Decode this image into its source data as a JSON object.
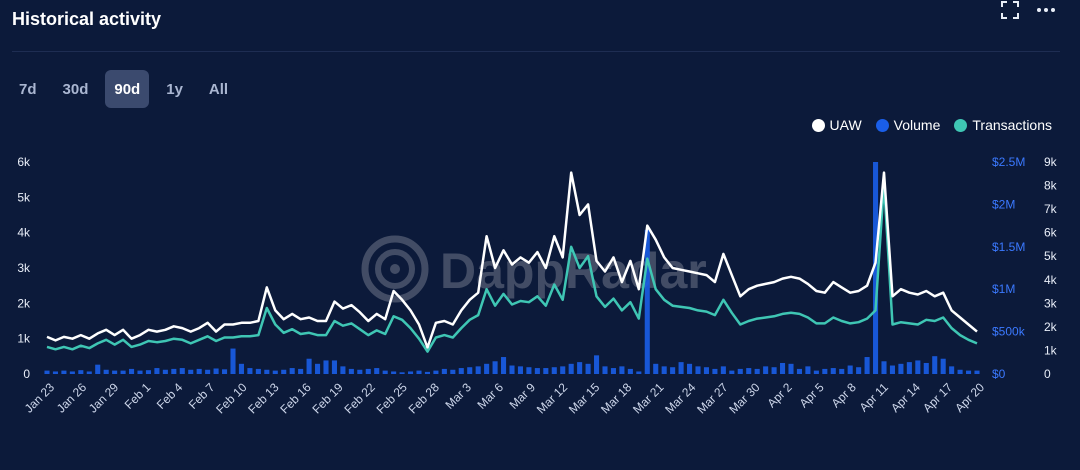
{
  "header": {
    "title": "Historical activity"
  },
  "tabs": [
    {
      "label": "7d",
      "active": false
    },
    {
      "label": "30d",
      "active": false
    },
    {
      "label": "90d",
      "active": true
    },
    {
      "label": "1y",
      "active": false
    },
    {
      "label": "All",
      "active": false
    }
  ],
  "icons": {
    "expand": "expand-icon",
    "more": "more-icon"
  },
  "watermark": "DappRadar",
  "legend": [
    {
      "label": "UAW",
      "color": "#ffffff"
    },
    {
      "label": "Volume",
      "color": "#1a5ee8"
    },
    {
      "label": "Transactions",
      "color": "#3fc6b4"
    }
  ],
  "chart_data": {
    "type": "line",
    "x_labels": [
      "Jan 23",
      "Jan 26",
      "Jan 29",
      "Feb 1",
      "Feb 4",
      "Feb 7",
      "Feb 10",
      "Feb 13",
      "Feb 16",
      "Feb 19",
      "Feb 22",
      "Feb 25",
      "Feb 28",
      "Mar 3",
      "Mar 6",
      "Mar 9",
      "Mar 12",
      "Mar 15",
      "Mar 18",
      "Mar 21",
      "Mar 24",
      "Mar 27",
      "Mar 30",
      "Apr 2",
      "Apr 5",
      "Apr 8",
      "Apr 11",
      "Apr 14",
      "Apr 17",
      "Apr 20"
    ],
    "left_axis": {
      "ticks": [
        "0",
        "1k",
        "2k",
        "3k",
        "4k",
        "5k",
        "6k"
      ],
      "ylim": [
        0,
        6000
      ]
    },
    "volume_axis": {
      "ticks": [
        "$0",
        "$500k",
        "$1M",
        "$1.5M",
        "$2M",
        "$2.5M"
      ],
      "ylim": [
        0,
        2500000
      ]
    },
    "transactions_axis": {
      "ticks": [
        "0",
        "1k",
        "2k",
        "3k",
        "4k",
        "5k",
        "6k",
        "7k",
        "8k",
        "9k"
      ],
      "ylim": [
        0,
        9000
      ]
    },
    "series": [
      {
        "name": "UAW",
        "color": "#ffffff",
        "axis": "left",
        "values": [
          1050,
          950,
          1050,
          1000,
          1100,
          1000,
          1150,
          1250,
          1100,
          1250,
          1000,
          1100,
          1250,
          1200,
          1250,
          1350,
          1300,
          1200,
          1300,
          1450,
          1200,
          1400,
          1400,
          1450,
          1450,
          1500,
          2450,
          1800,
          1550,
          1700,
          1550,
          1600,
          1500,
          1500,
          2050,
          1850,
          1950,
          1750,
          1500,
          1700,
          1550,
          2350,
          2100,
          1800,
          1400,
          750,
          1450,
          1500,
          1400,
          1800,
          2100,
          2300,
          3900,
          3000,
          3500,
          3100,
          3300,
          3150,
          3450,
          3000,
          3900,
          3300,
          5700,
          4500,
          4800,
          3200,
          2900,
          3300,
          2600,
          3200,
          2400,
          4200,
          3800,
          3300,
          3000,
          2950,
          2900,
          2850,
          2800,
          2600,
          3400,
          2800,
          2200,
          2400,
          2500,
          2550,
          2600,
          2700,
          2750,
          2700,
          2550,
          2350,
          2300,
          2600,
          2450,
          2300,
          2350,
          2500,
          3150,
          5700,
          2200,
          2400,
          2300,
          2250,
          2350,
          2200,
          2300,
          1800,
          1600,
          1400,
          1200
        ]
      },
      {
        "name": "Volume",
        "color": "#1a5ee8",
        "axis": "volume",
        "values": [
          40000,
          30000,
          40000,
          30000,
          45000,
          30000,
          110000,
          50000,
          40000,
          40000,
          60000,
          40000,
          45000,
          70000,
          50000,
          60000,
          70000,
          50000,
          60000,
          50000,
          65000,
          55000,
          300000,
          120000,
          70000,
          60000,
          50000,
          40000,
          50000,
          70000,
          60000,
          180000,
          120000,
          160000,
          160000,
          90000,
          60000,
          50000,
          60000,
          70000,
          40000,
          30000,
          20000,
          30000,
          40000,
          25000,
          40000,
          60000,
          50000,
          70000,
          80000,
          90000,
          120000,
          150000,
          200000,
          100000,
          90000,
          80000,
          70000,
          70000,
          80000,
          90000,
          120000,
          140000,
          120000,
          220000,
          90000,
          70000,
          90000,
          60000,
          30000,
          1700000,
          120000,
          90000,
          80000,
          140000,
          120000,
          90000,
          80000,
          60000,
          90000,
          40000,
          60000,
          70000,
          60000,
          90000,
          80000,
          130000,
          120000,
          60000,
          90000,
          40000,
          60000,
          70000,
          60000,
          100000,
          80000,
          200000,
          2500000,
          150000,
          100000,
          120000,
          140000,
          160000,
          130000,
          210000,
          180000,
          90000,
          50000,
          40000,
          40000
        ]
      },
      {
        "name": "Transactions",
        "color": "#3fc6b4",
        "axis": "transactions",
        "values": [
          1150,
          1050,
          1150,
          1050,
          1200,
          1100,
          1300,
          1450,
          1250,
          1450,
          1150,
          1250,
          1400,
          1350,
          1400,
          1500,
          1450,
          1300,
          1450,
          1600,
          1400,
          1550,
          1550,
          1600,
          1600,
          1650,
          2800,
          2100,
          1750,
          1900,
          1700,
          1750,
          1650,
          1650,
          2250,
          2050,
          2150,
          1900,
          1650,
          1850,
          1700,
          2450,
          2300,
          1950,
          1500,
          950,
          1550,
          1650,
          1550,
          1950,
          2300,
          2500,
          3600,
          2900,
          3400,
          2950,
          3100,
          3050,
          3300,
          2900,
          3800,
          3150,
          5400,
          4500,
          5000,
          3300,
          2850,
          3200,
          2700,
          3050,
          2350,
          4900,
          3600,
          3150,
          2900,
          2850,
          2800,
          2700,
          2650,
          2500,
          3150,
          2600,
          2100,
          2250,
          2350,
          2400,
          2450,
          2550,
          2600,
          2550,
          2400,
          2150,
          2150,
          2400,
          2250,
          2150,
          2200,
          2350,
          2700,
          8100,
          2100,
          2200,
          2150,
          2100,
          2300,
          2250,
          2400,
          1950,
          1650,
          1450,
          1300
        ]
      }
    ],
    "grid": false,
    "legend_position": "top-right"
  }
}
